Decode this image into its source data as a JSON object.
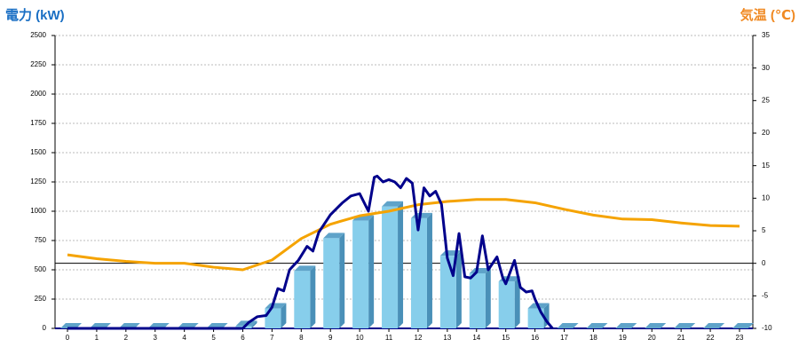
{
  "chart_data": {
    "type": "bar",
    "y_label": "電力 (kW)",
    "y2_label": "気温 (℃)",
    "categories": [
      "0",
      "1",
      "2",
      "3",
      "4",
      "5",
      "6",
      "7",
      "8",
      "9",
      "10",
      "11",
      "12",
      "13",
      "14",
      "15",
      "16",
      "17",
      "18",
      "19",
      "20",
      "21",
      "22",
      "23"
    ],
    "series": [
      {
        "type": "bar",
        "color": "#87ceeb",
        "values": [
          0,
          0,
          0,
          0,
          0,
          0,
          20,
          170,
          490,
          770,
          920,
          1040,
          940,
          620,
          470,
          400,
          170,
          0,
          0,
          0,
          0,
          0,
          0,
          0
        ]
      },
      {
        "type": "line",
        "axis": "y2",
        "color": "#f5a300",
        "values": [
          1.3,
          0.7,
          0.3,
          0,
          0,
          -0.6,
          -1.0,
          0.5,
          3.8,
          6,
          7.3,
          8,
          9,
          9.5,
          9.8,
          9.8,
          9.3,
          8.3,
          7.4,
          6.8,
          6.7,
          6.2,
          5.8,
          5.7
        ]
      },
      {
        "type": "line",
        "color": "#00008b",
        "x": [
          0,
          6,
          6.2,
          6.5,
          6.8,
          7,
          7.2,
          7.4,
          7.6,
          7.9,
          8.2,
          8.4,
          8.6,
          9,
          9.4,
          9.7,
          10,
          10.3,
          10.5,
          10.6,
          10.8,
          11,
          11.2,
          11.4,
          11.6,
          11.8,
          12,
          12.2,
          12.4,
          12.6,
          12.8,
          13,
          13.2,
          13.4,
          13.6,
          13.8,
          14,
          14.2,
          14.4,
          14.7,
          14.9,
          15,
          15.3,
          15.5,
          15.7,
          15.9,
          16,
          16.2,
          16.4,
          16.6
        ],
        "values": [
          0,
          0,
          50,
          100,
          110,
          180,
          340,
          320,
          500,
          580,
          700,
          660,
          820,
          970,
          1070,
          1130,
          1150,
          1000,
          1290,
          1300,
          1250,
          1270,
          1250,
          1200,
          1280,
          1240,
          840,
          1200,
          1130,
          1170,
          1060,
          600,
          450,
          810,
          440,
          430,
          480,
          790,
          500,
          610,
          430,
          380,
          580,
          350,
          310,
          320,
          250,
          140,
          60,
          0
        ]
      }
    ],
    "ylim": [
      0,
      2500
    ],
    "yticks": [
      0,
      250,
      500,
      750,
      1000,
      1250,
      1500,
      1750,
      2000,
      2250,
      2500
    ],
    "y2lim": [
      -10,
      35
    ],
    "y2ticks": [
      -10,
      -5,
      0,
      5,
      10,
      15,
      20,
      25,
      30,
      35
    ],
    "reference_line": {
      "axis": "y2",
      "value": 0,
      "color": "#000000"
    },
    "grid": true
  }
}
